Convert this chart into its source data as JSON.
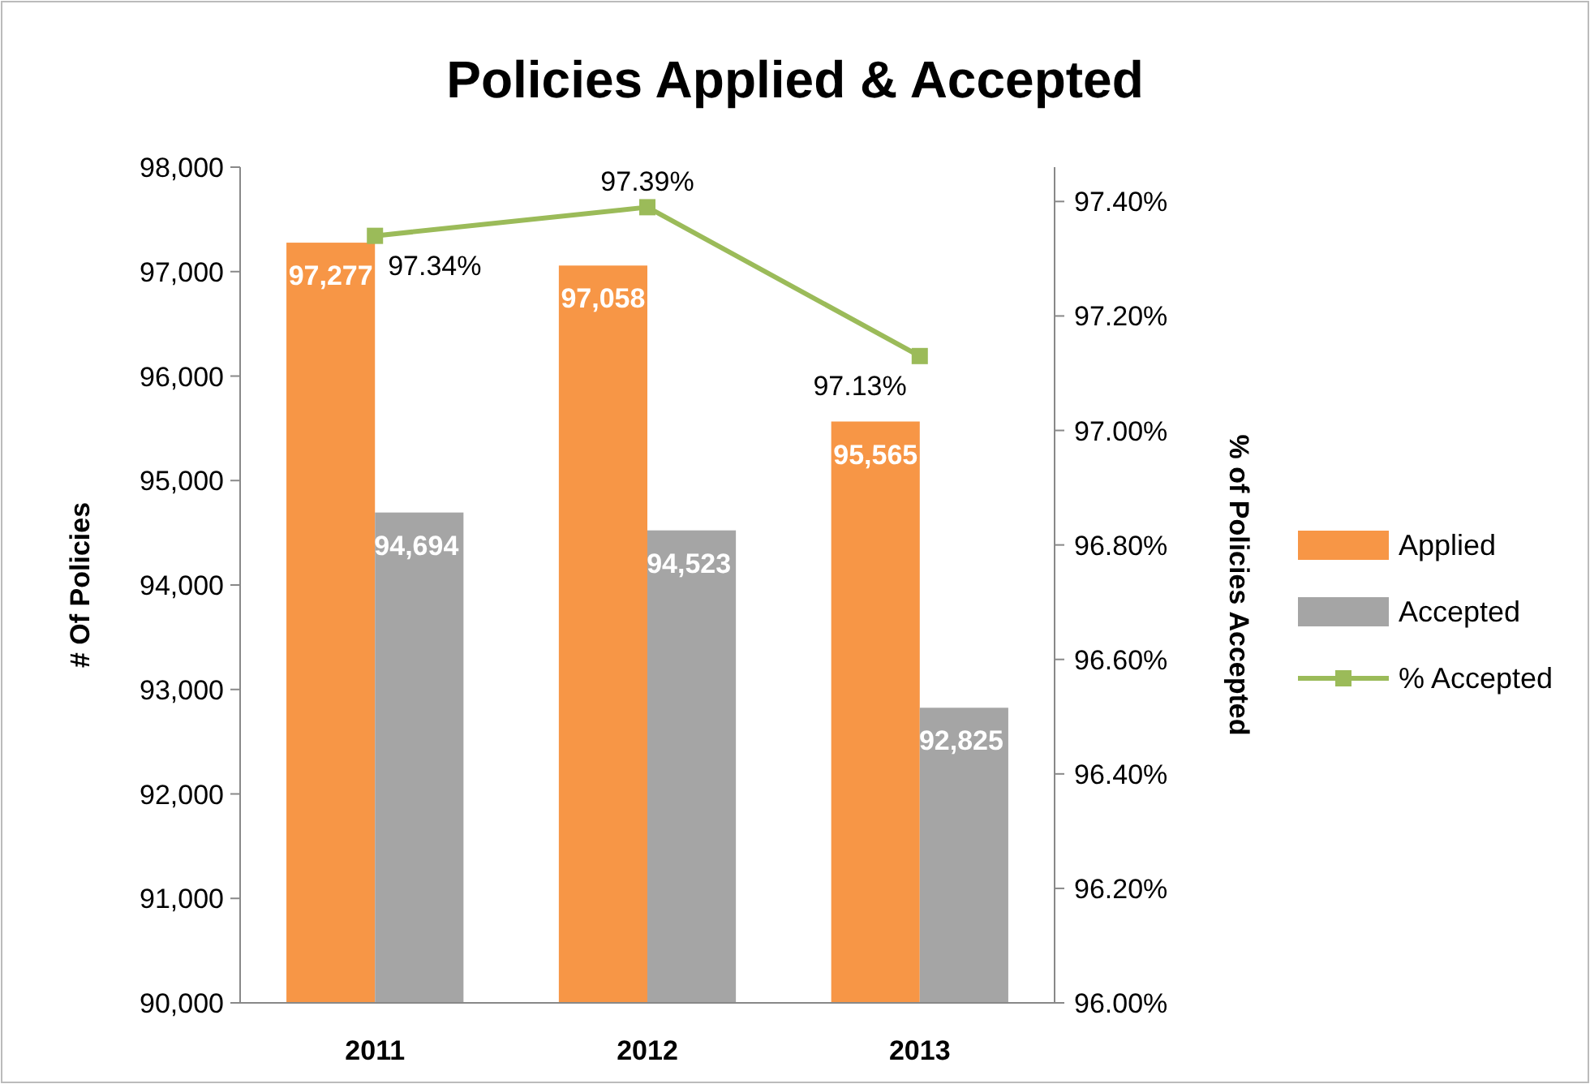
{
  "chart_data": {
    "type": "bar",
    "title": "Policies Applied & Accepted",
    "ylabel": "# Of Policies",
    "y2label": "% of Policies Accepted",
    "categories": [
      "2011",
      "2012",
      "2013"
    ],
    "series": [
      {
        "name": "Applied",
        "color": "#f79646",
        "values": [
          97277,
          97058,
          95565
        ],
        "value_labels": [
          "97,277",
          "97,058",
          "95,565"
        ]
      },
      {
        "name": "Accepted",
        "color": "#a5a5a5",
        "values": [
          94694,
          94523,
          92825
        ],
        "value_labels": [
          "94,694",
          "94,523",
          "92,825"
        ]
      },
      {
        "name": "% Accepted",
        "type": "line",
        "axis": "y2",
        "color": "#9bbb59",
        "marker": "square",
        "values": [
          97.34,
          97.39,
          97.13
        ],
        "value_labels": [
          "97.34%",
          "97.39%",
          "97.13%"
        ]
      }
    ],
    "ylim": [
      90000,
      98000
    ],
    "yticks": [
      {
        "value": 90000,
        "label": "90,000"
      },
      {
        "value": 91000,
        "label": "91,000"
      },
      {
        "value": 92000,
        "label": "92,000"
      },
      {
        "value": 93000,
        "label": "93,000"
      },
      {
        "value": 94000,
        "label": "94,000"
      },
      {
        "value": 95000,
        "label": "95,000"
      },
      {
        "value": 96000,
        "label": "96,000"
      },
      {
        "value": 97000,
        "label": "97,000"
      },
      {
        "value": 98000,
        "label": "98,000"
      }
    ],
    "y2lim": [
      96,
      97.46
    ],
    "y2ticks": [
      {
        "value": 96,
        "label": "96.00%"
      },
      {
        "value": 96.2,
        "label": "96.20%"
      },
      {
        "value": 96.4,
        "label": "96.40%"
      },
      {
        "value": 96.6,
        "label": "96.60%"
      },
      {
        "value": 96.8,
        "label": "96.80%"
      },
      {
        "value": 97,
        "label": "97.00%"
      },
      {
        "value": 97.2,
        "label": "97.20%"
      },
      {
        "value": 97.4,
        "label": "97.40%"
      }
    ],
    "legend": "right",
    "grid": false
  }
}
